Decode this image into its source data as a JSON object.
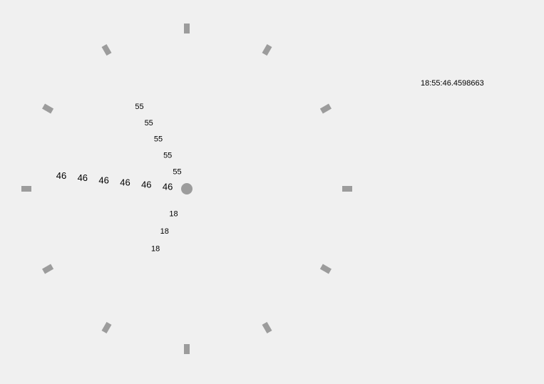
{
  "time_readout": "18:55:46.4598663",
  "clock": {
    "hour_value": "18",
    "minute_value": "55",
    "second_value": "46",
    "tick_count": 12,
    "tick_color": "#9c9c9c",
    "hub_color": "#9c9c9c"
  }
}
